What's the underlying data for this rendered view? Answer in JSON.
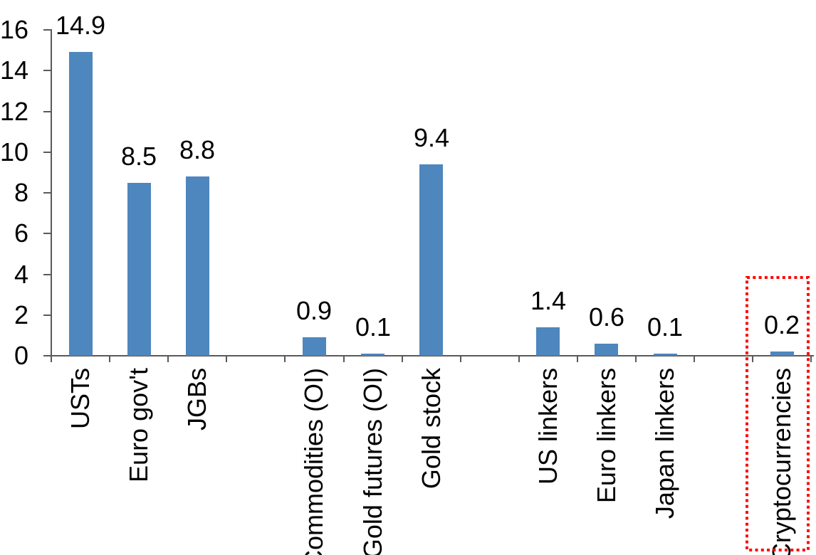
{
  "chart_data": {
    "type": "bar",
    "title": "",
    "xlabel": "",
    "ylabel": "",
    "ylim": [
      0,
      16
    ],
    "yticks": [
      0,
      2,
      4,
      6,
      8,
      10,
      12,
      14,
      16
    ],
    "grid": false,
    "legend": false,
    "bar_color": "#4E86BE",
    "axis_color": "#595959",
    "label_color": "#000000",
    "highlight_color": "#FF0000",
    "categories": [
      "USTs",
      "Euro gov't",
      "JGBs",
      "Commodities (OI)",
      "Gold futures (OI)",
      "Gold stock",
      "US linkers",
      "Euro linkers",
      "Japan linkers",
      "Cryptocurrencies"
    ],
    "values": [
      14.9,
      8.5,
      8.8,
      0.9,
      0.1,
      9.4,
      1.4,
      0.6,
      0.1,
      0.2
    ],
    "value_labels": [
      "14.9",
      "8.5",
      "8.8",
      "0.9",
      "0.1",
      "9.4",
      "1.4",
      "0.6",
      "0.1",
      "0.2"
    ],
    "slots": [
      0,
      1,
      2,
      4,
      5,
      6,
      8,
      9,
      10,
      12
    ],
    "num_slots": 13,
    "label_rotation_degrees": -90,
    "highlighted_category": "Cryptocurrencies",
    "highlight_style": "red dotted rectangle around bar and label"
  }
}
